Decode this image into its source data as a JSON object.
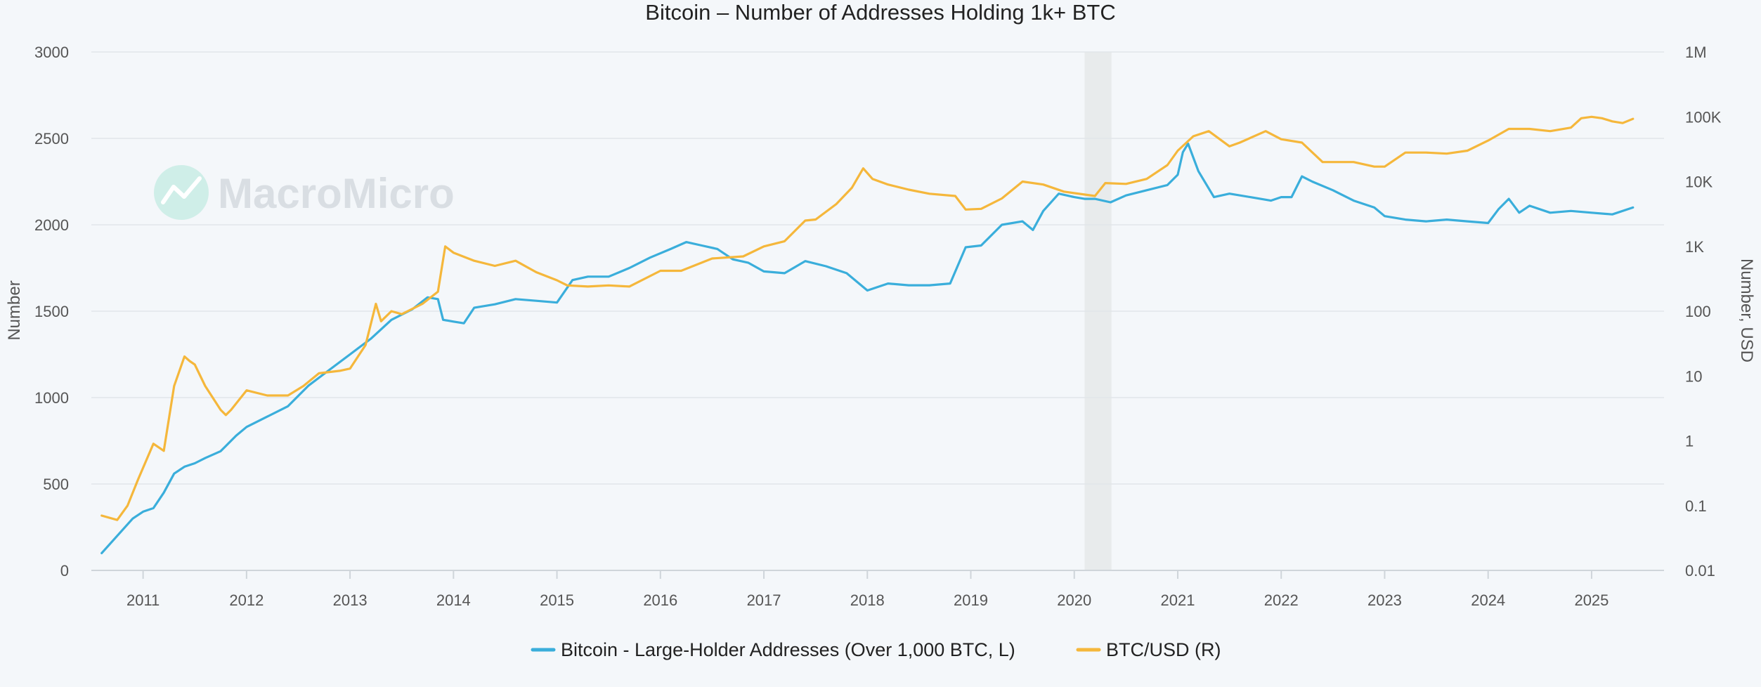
{
  "chart_data": {
    "type": "line",
    "title": "Bitcoin – Number of Addresses Holding 1k+ BTC",
    "watermark": "MacroMicro",
    "x_ticks": [
      "2011",
      "2012",
      "2013",
      "2014",
      "2015",
      "2016",
      "2017",
      "2018",
      "2019",
      "2020",
      "2021",
      "2022",
      "2023",
      "2024",
      "2025"
    ],
    "xlim": [
      2010.5,
      2025.7
    ],
    "ylabel_left": "Number",
    "ylabel_right": "Number, USD",
    "ylim_left": [
      0,
      3000
    ],
    "y_ticks_left": [
      "0",
      "500",
      "1000",
      "1500",
      "2000",
      "2500",
      "3000"
    ],
    "y_ticks_right": [
      "0.01",
      "0.1",
      "1",
      "10",
      "100",
      "1K",
      "10K",
      "100K",
      "1M"
    ],
    "right_scale": "log",
    "ylim_right": [
      0.01,
      1000000
    ],
    "grid": true,
    "legend_position": "bottom-center",
    "shaded_period": {
      "start": 2020.1,
      "end": 2020.36
    },
    "series": [
      {
        "name": "Bitcoin - Large-Holder Addresses (Over 1,000 BTC, L)",
        "axis": "left",
        "color": "#3aaedb",
        "x": [
          2010.6,
          2010.75,
          2010.9,
          2011.0,
          2011.1,
          2011.2,
          2011.3,
          2011.4,
          2011.5,
          2011.6,
          2011.75,
          2011.9,
          2012.0,
          2012.2,
          2012.4,
          2012.6,
          2012.8,
          2013.0,
          2013.2,
          2013.4,
          2013.6,
          2013.75,
          2013.85,
          2013.9,
          2014.0,
          2014.1,
          2014.2,
          2014.4,
          2014.6,
          2014.8,
          2015.0,
          2015.15,
          2015.3,
          2015.5,
          2015.7,
          2015.9,
          2016.1,
          2016.25,
          2016.4,
          2016.55,
          2016.7,
          2016.85,
          2017.0,
          2017.2,
          2017.4,
          2017.6,
          2017.8,
          2018.0,
          2018.2,
          2018.4,
          2018.6,
          2018.8,
          2018.95,
          2019.1,
          2019.3,
          2019.5,
          2019.6,
          2019.7,
          2019.85,
          2020.0,
          2020.1,
          2020.2,
          2020.35,
          2020.5,
          2020.7,
          2020.9,
          2021.0,
          2021.05,
          2021.1,
          2021.2,
          2021.35,
          2021.5,
          2021.7,
          2021.9,
          2022.0,
          2022.1,
          2022.2,
          2022.3,
          2022.5,
          2022.7,
          2022.9,
          2023.0,
          2023.2,
          2023.4,
          2023.6,
          2023.8,
          2024.0,
          2024.1,
          2024.2,
          2024.3,
          2024.4,
          2024.6,
          2024.8,
          2025.0,
          2025.2,
          2025.4
        ],
        "values": [
          100,
          200,
          300,
          340,
          360,
          450,
          560,
          600,
          620,
          650,
          690,
          780,
          830,
          890,
          950,
          1070,
          1160,
          1250,
          1340,
          1450,
          1510,
          1580,
          1570,
          1450,
          1440,
          1430,
          1520,
          1540,
          1570,
          1560,
          1550,
          1680,
          1700,
          1700,
          1750,
          1810,
          1860,
          1900,
          1880,
          1860,
          1800,
          1780,
          1730,
          1720,
          1790,
          1760,
          1720,
          1620,
          1660,
          1650,
          1650,
          1660,
          1870,
          1880,
          2000,
          2020,
          1970,
          2080,
          2180,
          2160,
          2150,
          2150,
          2130,
          2170,
          2200,
          2230,
          2290,
          2420,
          2470,
          2310,
          2160,
          2180,
          2160,
          2140,
          2160,
          2160,
          2280,
          2250,
          2200,
          2140,
          2100,
          2050,
          2030,
          2020,
          2030,
          2020,
          2010,
          2090,
          2150,
          2070,
          2110,
          2070,
          2080,
          2070,
          2060,
          2100
        ]
      },
      {
        "name": "BTC/USD (R)",
        "axis": "right",
        "color": "#f5b73b",
        "x": [
          2010.6,
          2010.75,
          2010.85,
          2010.95,
          2011.1,
          2011.2,
          2011.3,
          2011.4,
          2011.45,
          2011.5,
          2011.6,
          2011.75,
          2011.8,
          2011.85,
          2012.0,
          2012.2,
          2012.4,
          2012.55,
          2012.7,
          2012.9,
          2013.0,
          2013.15,
          2013.25,
          2013.3,
          2013.4,
          2013.5,
          2013.7,
          2013.85,
          2013.92,
          2014.0,
          2014.2,
          2014.4,
          2014.6,
          2014.8,
          2015.0,
          2015.1,
          2015.3,
          2015.5,
          2015.7,
          2016.0,
          2016.2,
          2016.5,
          2016.8,
          2017.0,
          2017.2,
          2017.4,
          2017.5,
          2017.7,
          2017.85,
          2017.96,
          2018.05,
          2018.2,
          2018.4,
          2018.6,
          2018.85,
          2018.95,
          2019.1,
          2019.3,
          2019.5,
          2019.7,
          2019.9,
          2020.2,
          2020.3,
          2020.5,
          2020.7,
          2020.9,
          2021.0,
          2021.15,
          2021.3,
          2021.5,
          2021.6,
          2021.85,
          2022.0,
          2022.2,
          2022.4,
          2022.5,
          2022.7,
          2022.9,
          2023.0,
          2023.2,
          2023.4,
          2023.6,
          2023.8,
          2024.0,
          2024.2,
          2024.4,
          2024.6,
          2024.8,
          2024.9,
          2025.0,
          2025.1,
          2025.2,
          2025.3,
          2025.4
        ],
        "values": [
          0.07,
          0.06,
          0.1,
          0.25,
          0.9,
          0.7,
          7,
          20,
          17,
          15,
          7,
          3,
          2.5,
          3,
          6,
          5,
          5,
          7,
          11,
          12,
          13,
          30,
          130,
          70,
          100,
          90,
          130,
          200,
          1000,
          800,
          600,
          500,
          600,
          400,
          300,
          250,
          240,
          250,
          240,
          420,
          420,
          650,
          700,
          1000,
          1200,
          2500,
          2600,
          4500,
          8000,
          16000,
          11000,
          9000,
          7500,
          6500,
          6000,
          3700,
          3800,
          5500,
          10000,
          9000,
          7000,
          6000,
          9500,
          9200,
          11000,
          18000,
          30000,
          50000,
          60000,
          35000,
          40000,
          60000,
          45000,
          40000,
          20000,
          20000,
          20000,
          17000,
          17000,
          28000,
          28000,
          27000,
          30000,
          43000,
          65000,
          65000,
          60000,
          68000,
          95000,
          100000,
          95000,
          85000,
          80000,
          93000
        ]
      }
    ]
  }
}
